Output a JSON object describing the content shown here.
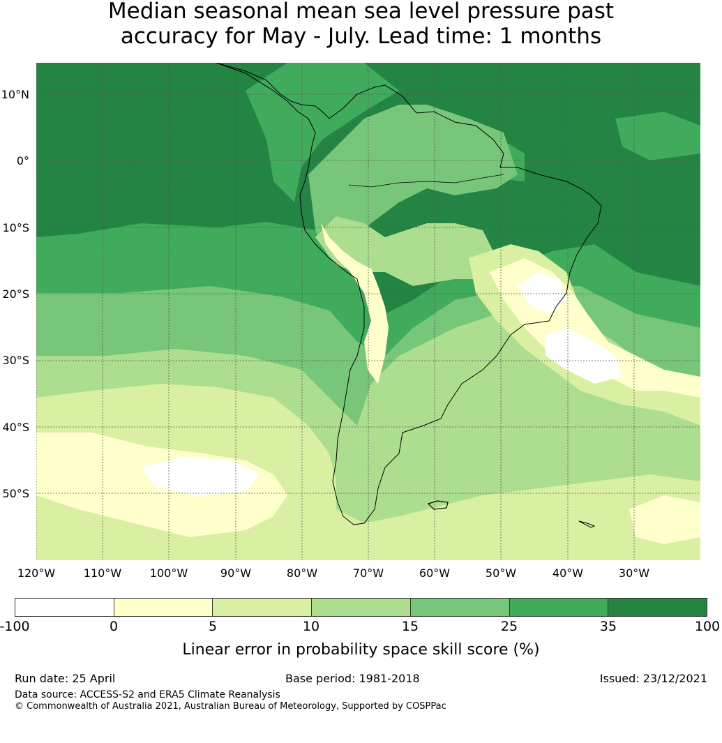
{
  "title": {
    "line1": "Median seasonal mean sea level pressure past",
    "line2": "accuracy for May - July. Lead time: 1 months"
  },
  "map": {
    "lat_labels": [
      "10°N",
      "0°",
      "10°S",
      "20°S",
      "30°S",
      "40°S",
      "50°S"
    ],
    "lon_labels": [
      "120°W",
      "110°W",
      "100°W",
      "90°W",
      "80°W",
      "70°W",
      "60°W",
      "50°W",
      "40°W",
      "30°W"
    ],
    "colors": {
      "lt0": "#ffffff",
      "c0_5": "#ffffcc",
      "c5_10": "#d9f0a3",
      "c10_15": "#addd8e",
      "c15_25": "#78c679",
      "c25_35": "#41ab5d",
      "c35_100": "#238443"
    }
  },
  "colorbar": {
    "ticks": [
      "-100",
      "0",
      "5",
      "10",
      "15",
      "25",
      "35",
      "100"
    ],
    "label": "Linear error in probability space skill score (%)",
    "segment_colors": [
      "#ffffff",
      "#ffffcc",
      "#d9f0a3",
      "#addd8e",
      "#78c679",
      "#41ab5d",
      "#238443"
    ]
  },
  "footer": {
    "run_date": "Run date: 25 April",
    "base_period": "Base period: 1981-2018",
    "issued": "Issued: 23/12/2021",
    "data_source": "Data source: ACCESS-S2 and ERA5 Climate Reanalysis",
    "copyright": "© Commonwealth of Australia 2021, Australian Bureau of Meteorology, Supported by COSPPac"
  }
}
